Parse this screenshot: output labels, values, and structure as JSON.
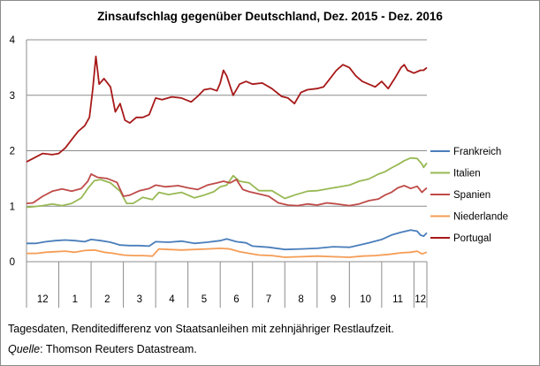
{
  "chart_data": {
    "type": "line",
    "title": "Zinsaufschlag gegenüber Deutschland, Dez. 2015 - Dez. 2016",
    "xlabel": "",
    "ylabel": "",
    "ylim": [
      0,
      4
    ],
    "yticks": [
      "0",
      "1",
      "2",
      "3",
      "4"
    ],
    "grid": "horizontal",
    "legend_position": "right",
    "x_month_labels": [
      "12",
      "1",
      "2",
      "3",
      "4",
      "5",
      "6",
      "7",
      "8",
      "9",
      "10",
      "11",
      "12"
    ],
    "x_month_boundaries": [
      0,
      1,
      2,
      3,
      4,
      5,
      6,
      7,
      8,
      9,
      10,
      11,
      12,
      12.4
    ],
    "series": [
      {
        "name": "Frankreich",
        "color": "#4a7ebb",
        "points": [
          [
            0,
            0.33
          ],
          [
            0.3,
            0.33
          ],
          [
            0.6,
            0.36
          ],
          [
            0.9,
            0.38
          ],
          [
            1.2,
            0.39
          ],
          [
            1.5,
            0.38
          ],
          [
            1.8,
            0.36
          ],
          [
            2.0,
            0.4
          ],
          [
            2.3,
            0.38
          ],
          [
            2.6,
            0.35
          ],
          [
            2.9,
            0.3
          ],
          [
            3.2,
            0.29
          ],
          [
            3.5,
            0.29
          ],
          [
            3.8,
            0.28
          ],
          [
            4.0,
            0.36
          ],
          [
            4.4,
            0.35
          ],
          [
            4.8,
            0.37
          ],
          [
            5.2,
            0.33
          ],
          [
            5.6,
            0.35
          ],
          [
            6.0,
            0.38
          ],
          [
            6.2,
            0.41
          ],
          [
            6.5,
            0.36
          ],
          [
            6.8,
            0.34
          ],
          [
            7.0,
            0.28
          ],
          [
            7.5,
            0.26
          ],
          [
            8.0,
            0.22
          ],
          [
            8.5,
            0.23
          ],
          [
            9.0,
            0.24
          ],
          [
            9.5,
            0.27
          ],
          [
            10.0,
            0.26
          ],
          [
            10.3,
            0.3
          ],
          [
            10.6,
            0.34
          ],
          [
            11.0,
            0.4
          ],
          [
            11.3,
            0.48
          ],
          [
            11.6,
            0.53
          ],
          [
            11.9,
            0.57
          ],
          [
            12.1,
            0.55
          ],
          [
            12.2,
            0.48
          ],
          [
            12.3,
            0.46
          ],
          [
            12.4,
            0.52
          ]
        ]
      },
      {
        "name": "Italien",
        "color": "#98b954",
        "points": [
          [
            0,
            0.98
          ],
          [
            0.2,
            0.99
          ],
          [
            0.5,
            1.01
          ],
          [
            0.8,
            1.04
          ],
          [
            1.1,
            1.01
          ],
          [
            1.4,
            1.05
          ],
          [
            1.7,
            1.15
          ],
          [
            1.9,
            1.32
          ],
          [
            2.1,
            1.46
          ],
          [
            2.3,
            1.48
          ],
          [
            2.6,
            1.42
          ],
          [
            2.9,
            1.27
          ],
          [
            3.1,
            1.05
          ],
          [
            3.3,
            1.05
          ],
          [
            3.6,
            1.16
          ],
          [
            3.9,
            1.12
          ],
          [
            4.1,
            1.25
          ],
          [
            4.4,
            1.21
          ],
          [
            4.8,
            1.25
          ],
          [
            5.2,
            1.15
          ],
          [
            5.5,
            1.2
          ],
          [
            5.8,
            1.26
          ],
          [
            6.0,
            1.35
          ],
          [
            6.2,
            1.38
          ],
          [
            6.4,
            1.55
          ],
          [
            6.6,
            1.45
          ],
          [
            6.9,
            1.42
          ],
          [
            7.2,
            1.28
          ],
          [
            7.6,
            1.28
          ],
          [
            8.0,
            1.14
          ],
          [
            8.3,
            1.2
          ],
          [
            8.7,
            1.27
          ],
          [
            9.0,
            1.28
          ],
          [
            9.3,
            1.31
          ],
          [
            9.7,
            1.35
          ],
          [
            10.0,
            1.38
          ],
          [
            10.3,
            1.45
          ],
          [
            10.6,
            1.49
          ],
          [
            10.9,
            1.58
          ],
          [
            11.1,
            1.62
          ],
          [
            11.3,
            1.69
          ],
          [
            11.5,
            1.75
          ],
          [
            11.7,
            1.82
          ],
          [
            11.9,
            1.87
          ],
          [
            12.1,
            1.86
          ],
          [
            12.25,
            1.76
          ],
          [
            12.3,
            1.7
          ],
          [
            12.4,
            1.78
          ]
        ]
      },
      {
        "name": "Spanien",
        "color": "#be4b48",
        "points": [
          [
            0,
            1.05
          ],
          [
            0.2,
            1.06
          ],
          [
            0.5,
            1.18
          ],
          [
            0.8,
            1.27
          ],
          [
            1.1,
            1.31
          ],
          [
            1.4,
            1.27
          ],
          [
            1.7,
            1.32
          ],
          [
            1.9,
            1.45
          ],
          [
            2.0,
            1.58
          ],
          [
            2.2,
            1.52
          ],
          [
            2.5,
            1.5
          ],
          [
            2.8,
            1.43
          ],
          [
            3.0,
            1.18
          ],
          [
            3.2,
            1.2
          ],
          [
            3.5,
            1.28
          ],
          [
            3.8,
            1.32
          ],
          [
            4.0,
            1.38
          ],
          [
            4.3,
            1.35
          ],
          [
            4.7,
            1.37
          ],
          [
            5.0,
            1.33
          ],
          [
            5.3,
            1.3
          ],
          [
            5.6,
            1.38
          ],
          [
            5.9,
            1.42
          ],
          [
            6.1,
            1.45
          ],
          [
            6.3,
            1.42
          ],
          [
            6.5,
            1.48
          ],
          [
            6.7,
            1.3
          ],
          [
            6.9,
            1.26
          ],
          [
            7.2,
            1.22
          ],
          [
            7.5,
            1.18
          ],
          [
            7.8,
            1.06
          ],
          [
            8.1,
            1.02
          ],
          [
            8.4,
            1.01
          ],
          [
            8.7,
            1.04
          ],
          [
            9.0,
            1.02
          ],
          [
            9.3,
            1.06
          ],
          [
            9.6,
            1.04
          ],
          [
            10.0,
            1.01
          ],
          [
            10.3,
            1.04
          ],
          [
            10.6,
            1.1
          ],
          [
            10.9,
            1.13
          ],
          [
            11.1,
            1.2
          ],
          [
            11.3,
            1.25
          ],
          [
            11.5,
            1.33
          ],
          [
            11.7,
            1.37
          ],
          [
            11.9,
            1.32
          ],
          [
            12.1,
            1.36
          ],
          [
            12.25,
            1.25
          ],
          [
            12.3,
            1.28
          ],
          [
            12.4,
            1.33
          ]
        ]
      },
      {
        "name": "Niederlande",
        "color": "#f59d56",
        "points": [
          [
            0,
            0.15
          ],
          [
            0.3,
            0.15
          ],
          [
            0.6,
            0.17
          ],
          [
            0.9,
            0.18
          ],
          [
            1.2,
            0.19
          ],
          [
            1.5,
            0.17
          ],
          [
            1.8,
            0.2
          ],
          [
            2.1,
            0.21
          ],
          [
            2.4,
            0.17
          ],
          [
            2.7,
            0.15
          ],
          [
            3.0,
            0.12
          ],
          [
            3.3,
            0.11
          ],
          [
            3.6,
            0.11
          ],
          [
            3.9,
            0.1
          ],
          [
            4.1,
            0.23
          ],
          [
            4.4,
            0.22
          ],
          [
            4.8,
            0.21
          ],
          [
            5.2,
            0.22
          ],
          [
            5.6,
            0.23
          ],
          [
            6.0,
            0.24
          ],
          [
            6.3,
            0.23
          ],
          [
            6.6,
            0.18
          ],
          [
            6.9,
            0.15
          ],
          [
            7.2,
            0.12
          ],
          [
            7.6,
            0.11
          ],
          [
            8.0,
            0.08
          ],
          [
            8.5,
            0.09
          ],
          [
            9.0,
            0.1
          ],
          [
            9.5,
            0.09
          ],
          [
            10.0,
            0.08
          ],
          [
            10.4,
            0.1
          ],
          [
            10.8,
            0.11
          ],
          [
            11.2,
            0.13
          ],
          [
            11.6,
            0.16
          ],
          [
            11.9,
            0.17
          ],
          [
            12.1,
            0.19
          ],
          [
            12.25,
            0.14
          ],
          [
            12.4,
            0.17
          ]
        ]
      },
      {
        "name": "Portugal",
        "color": "#a81919",
        "points": [
          [
            0,
            1.8
          ],
          [
            0.2,
            1.86
          ],
          [
            0.5,
            1.95
          ],
          [
            0.8,
            1.93
          ],
          [
            1.0,
            1.95
          ],
          [
            1.2,
            2.05
          ],
          [
            1.4,
            2.2
          ],
          [
            1.6,
            2.35
          ],
          [
            1.8,
            2.45
          ],
          [
            1.95,
            2.6
          ],
          [
            2.05,
            3.1
          ],
          [
            2.15,
            3.7
          ],
          [
            2.25,
            3.2
          ],
          [
            2.4,
            3.3
          ],
          [
            2.6,
            3.15
          ],
          [
            2.75,
            2.7
          ],
          [
            2.9,
            2.85
          ],
          [
            3.05,
            2.55
          ],
          [
            3.2,
            2.5
          ],
          [
            3.4,
            2.6
          ],
          [
            3.6,
            2.6
          ],
          [
            3.8,
            2.65
          ],
          [
            4.0,
            2.95
          ],
          [
            4.2,
            2.92
          ],
          [
            4.5,
            2.97
          ],
          [
            4.8,
            2.95
          ],
          [
            5.1,
            2.88
          ],
          [
            5.3,
            2.98
          ],
          [
            5.5,
            3.1
          ],
          [
            5.7,
            3.12
          ],
          [
            5.9,
            3.08
          ],
          [
            6.0,
            3.22
          ],
          [
            6.1,
            3.45
          ],
          [
            6.2,
            3.35
          ],
          [
            6.4,
            3.0
          ],
          [
            6.6,
            3.2
          ],
          [
            6.8,
            3.25
          ],
          [
            7.0,
            3.2
          ],
          [
            7.3,
            3.22
          ],
          [
            7.6,
            3.12
          ],
          [
            7.9,
            2.98
          ],
          [
            8.1,
            2.95
          ],
          [
            8.3,
            2.85
          ],
          [
            8.5,
            3.05
          ],
          [
            8.7,
            3.1
          ],
          [
            9.0,
            3.12
          ],
          [
            9.2,
            3.15
          ],
          [
            9.4,
            3.3
          ],
          [
            9.6,
            3.45
          ],
          [
            9.8,
            3.55
          ],
          [
            10.0,
            3.5
          ],
          [
            10.2,
            3.35
          ],
          [
            10.4,
            3.25
          ],
          [
            10.6,
            3.2
          ],
          [
            10.8,
            3.15
          ],
          [
            11.0,
            3.25
          ],
          [
            11.2,
            3.12
          ],
          [
            11.4,
            3.3
          ],
          [
            11.6,
            3.5
          ],
          [
            11.7,
            3.55
          ],
          [
            11.8,
            3.45
          ],
          [
            12.0,
            3.4
          ],
          [
            12.2,
            3.45
          ],
          [
            12.3,
            3.45
          ],
          [
            12.4,
            3.5
          ]
        ]
      }
    ]
  },
  "footnote": {
    "line1": "Tagesdaten, Renditedifferenz  von Staatsanleihen mit zehnjähriger Restlaufzeit.",
    "source_label": "Quelle",
    "source_text": ": Thomson Reuters Datastream."
  }
}
